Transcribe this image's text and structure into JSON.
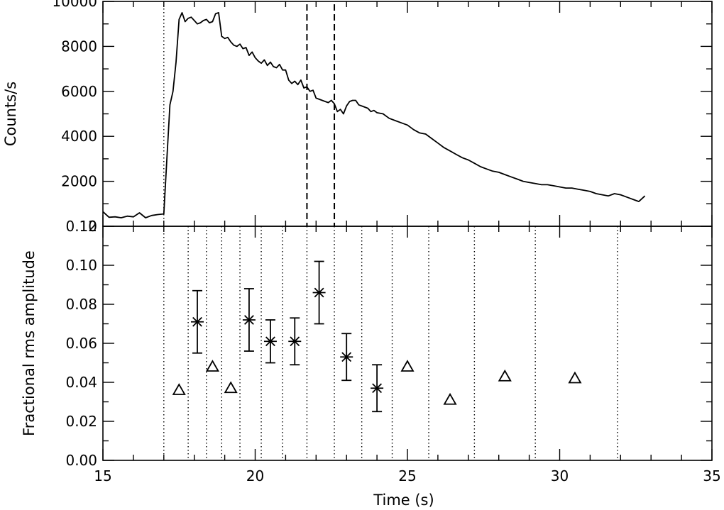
{
  "chart_data": [
    {
      "type": "line",
      "panel": "top",
      "ylabel": "Counts/s",
      "xlim": [
        15,
        35
      ],
      "ylim": [
        0,
        10000
      ],
      "yticks": [
        "0",
        "2000",
        "4000",
        "6000",
        "8000",
        "10000"
      ],
      "series": [
        {
          "x": [
            15.0,
            15.2,
            15.4,
            15.6,
            15.8,
            16.0,
            16.2,
            16.4,
            16.6,
            16.8,
            17.0,
            17.1,
            17.2,
            17.3,
            17.4,
            17.5,
            17.6,
            17.7,
            17.8,
            17.9,
            18.0,
            18.1,
            18.2,
            18.3,
            18.4,
            18.5,
            18.6,
            18.7,
            18.8,
            18.9,
            19.0,
            19.1,
            19.2,
            19.3,
            19.4,
            19.5,
            19.6,
            19.7,
            19.8,
            19.9,
            20.0,
            20.1,
            20.2,
            20.3,
            20.4,
            20.5,
            20.6,
            20.7,
            20.8,
            20.9,
            21.0,
            21.1,
            21.2,
            21.3,
            21.4,
            21.5,
            21.6,
            21.7,
            21.8,
            21.9,
            22.0,
            22.1,
            22.2,
            22.3,
            22.4,
            22.5,
            22.6,
            22.7,
            22.8,
            22.9,
            23.0,
            23.1,
            23.2,
            23.3,
            23.4,
            23.5,
            23.6,
            23.7,
            23.8,
            23.9,
            24.0,
            24.2,
            24.4,
            24.6,
            24.8,
            25.0,
            25.2,
            25.4,
            25.6,
            25.8,
            26.0,
            26.2,
            26.4,
            26.6,
            26.8,
            27.0,
            27.2,
            27.4,
            27.6,
            27.8,
            28.0,
            28.2,
            28.4,
            28.6,
            28.8,
            29.0,
            29.2,
            29.4,
            29.6,
            29.8,
            30.0,
            30.2,
            30.4,
            30.6,
            30.8,
            31.0,
            31.2,
            31.4,
            31.6,
            31.8,
            32.0,
            32.2,
            32.4,
            32.6,
            32.8
          ],
          "y": [
            650,
            400,
            420,
            380,
            450,
            420,
            600,
            380,
            480,
            520,
            550,
            3000,
            5400,
            6000,
            7300,
            9200,
            9500,
            9100,
            9250,
            9300,
            9150,
            9000,
            9050,
            9150,
            9200,
            9050,
            9100,
            9450,
            9500,
            8450,
            8350,
            8400,
            8200,
            8050,
            8000,
            8100,
            7900,
            7950,
            7600,
            7750,
            7500,
            7350,
            7250,
            7400,
            7150,
            7300,
            7100,
            7050,
            7200,
            6950,
            6950,
            6500,
            6350,
            6450,
            6300,
            6500,
            6150,
            6200,
            6000,
            6050,
            5700,
            5650,
            5600,
            5550,
            5500,
            5600,
            5450,
            5100,
            5200,
            5000,
            5350,
            5550,
            5600,
            5600,
            5400,
            5350,
            5300,
            5250,
            5100,
            5150,
            5050,
            5000,
            4800,
            4700,
            4600,
            4500,
            4300,
            4150,
            4100,
            3900,
            3700,
            3500,
            3350,
            3200,
            3050,
            2950,
            2800,
            2650,
            2550,
            2450,
            2400,
            2300,
            2200,
            2100,
            2000,
            1950,
            1900,
            1850,
            1850,
            1800,
            1750,
            1700,
            1700,
            1650,
            1600,
            1550,
            1450,
            1400,
            1350,
            1450,
            1400,
            1300,
            1200,
            1100,
            1350
          ]
        }
      ],
      "vlines_dotted": [
        17.0
      ],
      "vlines_dashed": [
        21.7,
        22.6
      ]
    },
    {
      "type": "scatter",
      "panel": "bottom",
      "xlabel": "Time (s)",
      "ylabel": "Fractional rms amplitude",
      "xlim": [
        15,
        35
      ],
      "ylim": [
        0.0,
        0.12
      ],
      "xticks": [
        "15",
        "20",
        "25",
        "30",
        "35"
      ],
      "yticks": [
        "0.00",
        "0.02",
        "0.04",
        "0.06",
        "0.08",
        "0.10",
        "0.12"
      ],
      "series": [
        {
          "marker": "asterisk",
          "points": [
            {
              "x": 18.1,
              "y": 0.071,
              "err": 0.016
            },
            {
              "x": 19.8,
              "y": 0.072,
              "err": 0.016
            },
            {
              "x": 20.5,
              "y": 0.061,
              "err": 0.011
            },
            {
              "x": 21.3,
              "y": 0.061,
              "err": 0.012
            },
            {
              "x": 22.1,
              "y": 0.086,
              "err": 0.016
            },
            {
              "x": 23.0,
              "y": 0.053,
              "err": 0.012
            },
            {
              "x": 24.0,
              "y": 0.037,
              "err": 0.012
            }
          ]
        },
        {
          "marker": "triangle",
          "points": [
            {
              "x": 17.5,
              "y": 0.036
            },
            {
              "x": 18.6,
              "y": 0.048
            },
            {
              "x": 19.2,
              "y": 0.037
            },
            {
              "x": 25.0,
              "y": 0.048
            },
            {
              "x": 26.4,
              "y": 0.031
            },
            {
              "x": 28.2,
              "y": 0.043
            },
            {
              "x": 30.5,
              "y": 0.042
            }
          ]
        }
      ],
      "vlines_dotted": [
        17.0,
        17.8,
        18.4,
        18.9,
        19.5,
        20.2,
        20.9,
        21.7,
        22.6,
        23.5,
        24.5,
        25.7,
        27.2,
        29.2,
        31.9
      ]
    }
  ]
}
